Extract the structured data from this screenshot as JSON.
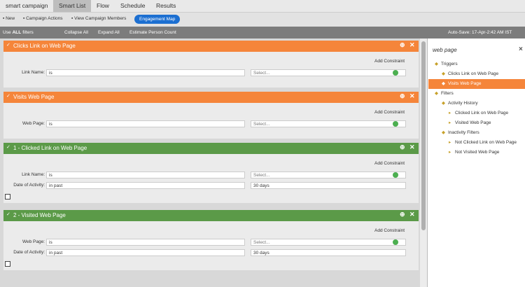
{
  "tabs": [
    "smart campaign",
    "Smart List",
    "Flow",
    "Schedule",
    "Results"
  ],
  "active_tab": 1,
  "toolbar": {
    "buttons": [
      "New",
      "Campaign Actions",
      "View Campaign Members"
    ],
    "primary": "Engagement Map"
  },
  "filter_bar": {
    "use_prefix": "Use",
    "use_all": "ALL",
    "use_suffix": "filters",
    "items": [
      "Collapse All",
      "Expand All",
      "Estimate Person Count"
    ],
    "autosave": "Auto-Save: 17-Apr-2:42 AM IST"
  },
  "cards": [
    {
      "title": "Clicks Link on Web Page",
      "color": "#f5853a",
      "add_constraint": "Add Constraint",
      "rows": [
        {
          "label": "Link Name:",
          "operator": "is",
          "value": "Select..."
        }
      ]
    },
    {
      "title": "Visits Web Page",
      "color": "#f5853a",
      "add_constraint": "Add Constraint",
      "rows": [
        {
          "label": "Web Page:",
          "operator": "is",
          "value": "Select..."
        }
      ]
    },
    {
      "title": "1 - Clicked Link on Web Page",
      "color": "#5b9a48",
      "add_constraint": "Add Constraint",
      "rows": [
        {
          "label": "Link Name:",
          "operator": "is",
          "value": "Select..."
        },
        {
          "label": "Date of Activity:",
          "operator": "in past",
          "value": "30 days"
        }
      ]
    },
    {
      "title": "2 - Visited Web Page",
      "color": "#5b9a48",
      "add_constraint": "Add Constraint",
      "rows": [
        {
          "label": "Web Page:",
          "operator": "is",
          "value": "Select..."
        },
        {
          "label": "Date of Activity:",
          "operator": "in past",
          "value": "30 days"
        }
      ]
    }
  ],
  "sidebar": {
    "search": "web page",
    "tree": [
      {
        "label": "Triggers",
        "level": 0
      },
      {
        "label": "Clicks Link on Web Page",
        "level": 1
      },
      {
        "label": "Visits Web Page",
        "level": 1,
        "selected": true
      },
      {
        "label": "Filters",
        "level": 0
      },
      {
        "label": "Activity History",
        "level": 1
      },
      {
        "label": "Clicked Link on Web Page",
        "level": 2
      },
      {
        "label": "Visited Web Page",
        "level": 2
      },
      {
        "label": "Inactivity Filters",
        "level": 1
      },
      {
        "label": "Not Clicked Link on Web Page",
        "level": 2
      },
      {
        "label": "Not Visited Web Page",
        "level": 2
      }
    ]
  }
}
